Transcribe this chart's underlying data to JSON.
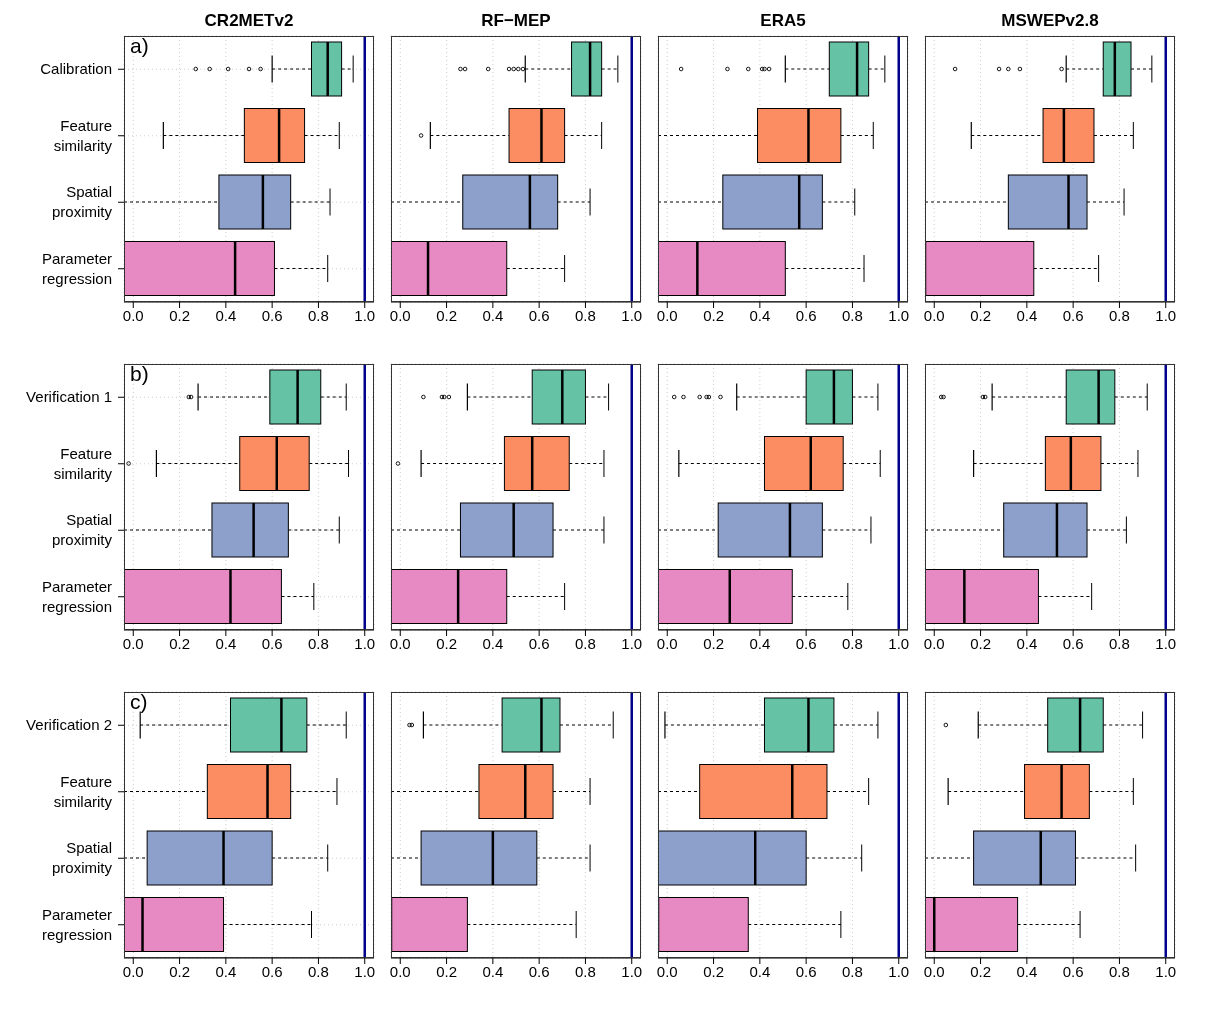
{
  "chart_data": [
    {
      "type": "box",
      "orientation": "horizontal",
      "title": "CR2METv2",
      "annotations": [
        "a)"
      ],
      "categories": [
        "Calibration",
        "Feature similarity",
        "Spatial proximity",
        "Parameter regression"
      ],
      "colors": [
        "#66c2a5",
        "#fc8d62",
        "#8da0cb",
        "#e78ac3"
      ],
      "boxes": [
        {
          "low": 0.6,
          "q1": 0.77,
          "median": 0.84,
          "q3": 0.9,
          "high": 0.95,
          "outliers": [
            0.27,
            0.33,
            0.41,
            0.5,
            0.55
          ]
        },
        {
          "low": 0.13,
          "q1": 0.48,
          "median": 0.63,
          "q3": 0.74,
          "high": 0.89
        },
        {
          "low": -0.04,
          "q1": 0.37,
          "median": 0.56,
          "q3": 0.68,
          "high": 0.85
        },
        {
          "low": -0.04,
          "q1": -0.04,
          "median": 0.44,
          "q3": 0.61,
          "high": 0.84
        }
      ],
      "xlim": [
        -0.04,
        1.04
      ],
      "xticks": [
        {
          "value": 0,
          "label": "0.0"
        },
        {
          "value": 0.2,
          "label": "0.2"
        },
        {
          "value": 0.4,
          "label": "0.4"
        },
        {
          "value": 0.6,
          "label": "0.6"
        },
        {
          "value": 0.8,
          "label": "0.8"
        },
        {
          "value": 1,
          "label": "1.0"
        }
      ],
      "ref_lines": [
        {
          "axis": "x",
          "value": 1,
          "color": "#00008b"
        }
      ],
      "grid": true
    },
    {
      "type": "box",
      "orientation": "horizontal",
      "title": "RF−MEP",
      "categories": [
        null,
        null,
        null,
        null
      ],
      "colors": [
        "#66c2a5",
        "#fc8d62",
        "#8da0cb",
        "#e78ac3"
      ],
      "tick_labels": "x",
      "boxes": [
        {
          "low": 0.54,
          "q1": 0.74,
          "median": 0.82,
          "q3": 0.87,
          "high": 0.94,
          "outliers": [
            0.26,
            0.28,
            0.38,
            0.47,
            0.49,
            0.51,
            0.53
          ]
        },
        {
          "low": 0.13,
          "q1": 0.47,
          "median": 0.61,
          "q3": 0.71,
          "high": 0.87,
          "outliers": [
            0.09
          ]
        },
        {
          "low": -0.04,
          "q1": 0.27,
          "median": 0.56,
          "q3": 0.68,
          "high": 0.82
        },
        {
          "low": -0.04,
          "q1": -0.04,
          "median": 0.12,
          "q3": 0.46,
          "high": 0.71
        }
      ],
      "xlim": [
        -0.04,
        1.04
      ],
      "xticks": [
        {
          "value": 0,
          "label": "0.0"
        },
        {
          "value": 0.2,
          "label": "0.2"
        },
        {
          "value": 0.4,
          "label": "0.4"
        },
        {
          "value": 0.6,
          "label": "0.6"
        },
        {
          "value": 0.8,
          "label": "0.8"
        },
        {
          "value": 1,
          "label": "1.0"
        }
      ],
      "ref_lines": [
        {
          "axis": "x",
          "value": 1,
          "color": "#00008b"
        }
      ],
      "grid": true
    },
    {
      "type": "box",
      "orientation": "horizontal",
      "title": "ERA5",
      "categories": [
        null,
        null,
        null,
        null
      ],
      "colors": [
        "#66c2a5",
        "#fc8d62",
        "#8da0cb",
        "#e78ac3"
      ],
      "tick_labels": "x",
      "boxes": [
        {
          "low": 0.51,
          "q1": 0.7,
          "median": 0.82,
          "q3": 0.87,
          "high": 0.94,
          "outliers": [
            0.06,
            0.26,
            0.35,
            0.41,
            0.42,
            0.44
          ]
        },
        {
          "low": -0.04,
          "q1": 0.39,
          "median": 0.61,
          "q3": 0.75,
          "high": 0.89
        },
        {
          "low": -0.04,
          "q1": 0.24,
          "median": 0.57,
          "q3": 0.67,
          "high": 0.81
        },
        {
          "low": -0.04,
          "q1": -0.04,
          "median": 0.13,
          "q3": 0.51,
          "high": 0.85
        }
      ],
      "xlim": [
        -0.04,
        1.04
      ],
      "xticks": [
        {
          "value": 0,
          "label": "0.0"
        },
        {
          "value": 0.2,
          "label": "0.2"
        },
        {
          "value": 0.4,
          "label": "0.4"
        },
        {
          "value": 0.6,
          "label": "0.6"
        },
        {
          "value": 0.8,
          "label": "0.8"
        },
        {
          "value": 1,
          "label": "1.0"
        }
      ],
      "ref_lines": [
        {
          "axis": "x",
          "value": 1,
          "color": "#00008b"
        }
      ],
      "grid": true
    },
    {
      "type": "box",
      "orientation": "horizontal",
      "title": "MSWEPv2.8",
      "categories": [
        null,
        null,
        null,
        null
      ],
      "colors": [
        "#66c2a5",
        "#fc8d62",
        "#8da0cb",
        "#e78ac3"
      ],
      "tick_labels": "x",
      "boxes": [
        {
          "low": 0.57,
          "q1": 0.73,
          "median": 0.78,
          "q3": 0.85,
          "high": 0.94,
          "outliers": [
            0.09,
            0.28,
            0.32,
            0.37,
            0.55
          ]
        },
        {
          "low": 0.16,
          "q1": 0.47,
          "median": 0.56,
          "q3": 0.69,
          "high": 0.86
        },
        {
          "low": -0.04,
          "q1": 0.32,
          "median": 0.58,
          "q3": 0.66,
          "high": 0.82
        },
        {
          "low": -0.04,
          "q1": -0.04,
          "median": -0.04,
          "q3": 0.43,
          "high": 0.71
        }
      ],
      "xlim": [
        -0.04,
        1.04
      ],
      "xticks": [
        {
          "value": 0,
          "label": "0.0"
        },
        {
          "value": 0.2,
          "label": "0.2"
        },
        {
          "value": 0.4,
          "label": "0.4"
        },
        {
          "value": 0.6,
          "label": "0.6"
        },
        {
          "value": 0.8,
          "label": "0.8"
        },
        {
          "value": 1,
          "label": "1.0"
        }
      ],
      "ref_lines": [
        {
          "axis": "x",
          "value": 1,
          "color": "#00008b"
        }
      ],
      "grid": true
    },
    {
      "type": "box",
      "orientation": "horizontal",
      "annotations": [
        "b)"
      ],
      "categories": [
        "Verification 1",
        "Feature similarity",
        "Spatial proximity",
        "Parameter regression"
      ],
      "colors": [
        "#66c2a5",
        "#fc8d62",
        "#8da0cb",
        "#e78ac3"
      ],
      "boxes": [
        {
          "low": 0.28,
          "q1": 0.59,
          "median": 0.71,
          "q3": 0.81,
          "high": 0.92,
          "outliers": [
            0.24,
            0.25
          ]
        },
        {
          "low": 0.1,
          "q1": 0.46,
          "median": 0.62,
          "q3": 0.76,
          "high": 0.93,
          "outliers": [
            -0.02
          ]
        },
        {
          "low": -0.04,
          "q1": 0.34,
          "median": 0.52,
          "q3": 0.67,
          "high": 0.89
        },
        {
          "low": -0.04,
          "q1": -0.04,
          "median": 0.42,
          "q3": 0.64,
          "high": 0.78
        }
      ],
      "xlim": [
        -0.04,
        1.04
      ],
      "xticks": [
        {
          "value": 0,
          "label": "0.0"
        },
        {
          "value": 0.2,
          "label": "0.2"
        },
        {
          "value": 0.4,
          "label": "0.4"
        },
        {
          "value": 0.6,
          "label": "0.6"
        },
        {
          "value": 0.8,
          "label": "0.8"
        },
        {
          "value": 1,
          "label": "1.0"
        }
      ],
      "ref_lines": [
        {
          "axis": "x",
          "value": 1,
          "color": "#00008b"
        }
      ],
      "grid": true
    },
    {
      "type": "box",
      "orientation": "horizontal",
      "categories": [
        null,
        null,
        null,
        null
      ],
      "colors": [
        "#66c2a5",
        "#fc8d62",
        "#8da0cb",
        "#e78ac3"
      ],
      "tick_labels": "x",
      "boxes": [
        {
          "low": 0.29,
          "q1": 0.57,
          "median": 0.7,
          "q3": 0.8,
          "high": 0.9,
          "outliers": [
            0.1,
            0.18,
            0.19,
            0.21
          ]
        },
        {
          "low": 0.09,
          "q1": 0.45,
          "median": 0.57,
          "q3": 0.73,
          "high": 0.88,
          "outliers": [
            -0.01
          ]
        },
        {
          "low": -0.04,
          "q1": 0.26,
          "median": 0.49,
          "q3": 0.66,
          "high": 0.88
        },
        {
          "low": -0.04,
          "q1": -0.04,
          "median": 0.25,
          "q3": 0.46,
          "high": 0.71
        }
      ],
      "xlim": [
        -0.04,
        1.04
      ],
      "xticks": [
        {
          "value": 0,
          "label": "0.0"
        },
        {
          "value": 0.2,
          "label": "0.2"
        },
        {
          "value": 0.4,
          "label": "0.4"
        },
        {
          "value": 0.6,
          "label": "0.6"
        },
        {
          "value": 0.8,
          "label": "0.8"
        },
        {
          "value": 1,
          "label": "1.0"
        }
      ],
      "ref_lines": [
        {
          "axis": "x",
          "value": 1,
          "color": "#00008b"
        }
      ],
      "grid": true
    },
    {
      "type": "box",
      "orientation": "horizontal",
      "categories": [
        null,
        null,
        null,
        null
      ],
      "colors": [
        "#66c2a5",
        "#fc8d62",
        "#8da0cb",
        "#e78ac3"
      ],
      "tick_labels": "x",
      "boxes": [
        {
          "low": 0.3,
          "q1": 0.6,
          "median": 0.72,
          "q3": 0.8,
          "high": 0.91,
          "outliers": [
            0.03,
            0.07,
            0.14,
            0.17,
            0.18,
            0.23
          ]
        },
        {
          "low": 0.05,
          "q1": 0.42,
          "median": 0.62,
          "q3": 0.76,
          "high": 0.92
        },
        {
          "low": -0.04,
          "q1": 0.22,
          "median": 0.53,
          "q3": 0.67,
          "high": 0.88
        },
        {
          "low": -0.04,
          "q1": -0.04,
          "median": 0.27,
          "q3": 0.54,
          "high": 0.78
        }
      ],
      "xlim": [
        -0.04,
        1.04
      ],
      "xticks": [
        {
          "value": 0,
          "label": "0.0"
        },
        {
          "value": 0.2,
          "label": "0.2"
        },
        {
          "value": 0.4,
          "label": "0.4"
        },
        {
          "value": 0.6,
          "label": "0.6"
        },
        {
          "value": 0.8,
          "label": "0.8"
        },
        {
          "value": 1,
          "label": "1.0"
        }
      ],
      "ref_lines": [
        {
          "axis": "x",
          "value": 1,
          "color": "#00008b"
        }
      ],
      "grid": true
    },
    {
      "type": "box",
      "orientation": "horizontal",
      "categories": [
        null,
        null,
        null,
        null
      ],
      "colors": [
        "#66c2a5",
        "#fc8d62",
        "#8da0cb",
        "#e78ac3"
      ],
      "tick_labels": "x",
      "boxes": [
        {
          "low": 0.25,
          "q1": 0.57,
          "median": 0.71,
          "q3": 0.78,
          "high": 0.92,
          "outliers": [
            0.03,
            0.04,
            0.21,
            0.22
          ]
        },
        {
          "low": 0.17,
          "q1": 0.48,
          "median": 0.59,
          "q3": 0.72,
          "high": 0.88
        },
        {
          "low": -0.04,
          "q1": 0.3,
          "median": 0.53,
          "q3": 0.66,
          "high": 0.83
        },
        {
          "low": -0.04,
          "q1": -0.04,
          "median": 0.13,
          "q3": 0.45,
          "high": 0.68
        }
      ],
      "xlim": [
        -0.04,
        1.04
      ],
      "xticks": [
        {
          "value": 0,
          "label": "0.0"
        },
        {
          "value": 0.2,
          "label": "0.2"
        },
        {
          "value": 0.4,
          "label": "0.4"
        },
        {
          "value": 0.6,
          "label": "0.6"
        },
        {
          "value": 0.8,
          "label": "0.8"
        },
        {
          "value": 1,
          "label": "1.0"
        }
      ],
      "ref_lines": [
        {
          "axis": "x",
          "value": 1,
          "color": "#00008b"
        }
      ],
      "grid": true
    },
    {
      "type": "box",
      "orientation": "horizontal",
      "annotations": [
        "c)"
      ],
      "categories": [
        "Verification 2",
        "Feature similarity",
        "Spatial proximity",
        "Parameter regression"
      ],
      "colors": [
        "#66c2a5",
        "#fc8d62",
        "#8da0cb",
        "#e78ac3"
      ],
      "boxes": [
        {
          "low": 0.03,
          "q1": 0.42,
          "median": 0.64,
          "q3": 0.75,
          "high": 0.92
        },
        {
          "low": -0.04,
          "q1": 0.32,
          "median": 0.58,
          "q3": 0.68,
          "high": 0.88
        },
        {
          "low": -0.04,
          "q1": 0.06,
          "median": 0.39,
          "q3": 0.6,
          "high": 0.84
        },
        {
          "low": -0.04,
          "q1": -0.04,
          "median": 0.04,
          "q3": 0.39,
          "high": 0.77
        }
      ],
      "xlim": [
        -0.04,
        1.04
      ],
      "xticks": [
        {
          "value": 0,
          "label": "0.0"
        },
        {
          "value": 0.2,
          "label": "0.2"
        },
        {
          "value": 0.4,
          "label": "0.4"
        },
        {
          "value": 0.6,
          "label": "0.6"
        },
        {
          "value": 0.8,
          "label": "0.8"
        },
        {
          "value": 1,
          "label": "1.0"
        }
      ],
      "ref_lines": [
        {
          "axis": "x",
          "value": 1,
          "color": "#00008b"
        }
      ],
      "grid": true
    },
    {
      "type": "box",
      "orientation": "horizontal",
      "categories": [
        null,
        null,
        null,
        null
      ],
      "colors": [
        "#66c2a5",
        "#fc8d62",
        "#8da0cb",
        "#e78ac3"
      ],
      "tick_labels": "x",
      "boxes": [
        {
          "low": 0.1,
          "q1": 0.44,
          "median": 0.61,
          "q3": 0.69,
          "high": 0.92,
          "outliers": [
            0.04,
            0.05
          ]
        },
        {
          "low": -0.04,
          "q1": 0.34,
          "median": 0.54,
          "q3": 0.66,
          "high": 0.82
        },
        {
          "low": -0.04,
          "q1": 0.09,
          "median": 0.4,
          "q3": 0.59,
          "high": 0.82
        },
        {
          "low": -0.04,
          "q1": -0.04,
          "median": -0.04,
          "q3": 0.29,
          "high": 0.76
        }
      ],
      "xlim": [
        -0.04,
        1.04
      ],
      "xticks": [
        {
          "value": 0,
          "label": "0.0"
        },
        {
          "value": 0.2,
          "label": "0.2"
        },
        {
          "value": 0.4,
          "label": "0.4"
        },
        {
          "value": 0.6,
          "label": "0.6"
        },
        {
          "value": 0.8,
          "label": "0.8"
        },
        {
          "value": 1,
          "label": "1.0"
        }
      ],
      "ref_lines": [
        {
          "axis": "x",
          "value": 1,
          "color": "#00008b"
        }
      ],
      "grid": true
    },
    {
      "type": "box",
      "orientation": "horizontal",
      "categories": [
        null,
        null,
        null,
        null
      ],
      "colors": [
        "#66c2a5",
        "#fc8d62",
        "#8da0cb",
        "#e78ac3"
      ],
      "tick_labels": "x",
      "boxes": [
        {
          "low": -0.01,
          "q1": 0.42,
          "median": 0.61,
          "q3": 0.72,
          "high": 0.91
        },
        {
          "low": -0.04,
          "q1": 0.14,
          "median": 0.54,
          "q3": 0.69,
          "high": 0.87
        },
        {
          "low": -0.04,
          "q1": -0.04,
          "median": 0.38,
          "q3": 0.6,
          "high": 0.84
        },
        {
          "low": -0.04,
          "q1": -0.04,
          "median": -0.04,
          "q3": 0.35,
          "high": 0.75
        }
      ],
      "xlim": [
        -0.04,
        1.04
      ],
      "xticks": [
        {
          "value": 0,
          "label": "0.0"
        },
        {
          "value": 0.2,
          "label": "0.2"
        },
        {
          "value": 0.4,
          "label": "0.4"
        },
        {
          "value": 0.6,
          "label": "0.6"
        },
        {
          "value": 0.8,
          "label": "0.8"
        },
        {
          "value": 1,
          "label": "1.0"
        }
      ],
      "ref_lines": [
        {
          "axis": "x",
          "value": 1,
          "color": "#00008b"
        }
      ],
      "grid": true
    },
    {
      "type": "box",
      "orientation": "horizontal",
      "categories": [
        null,
        null,
        null,
        null
      ],
      "colors": [
        "#66c2a5",
        "#fc8d62",
        "#8da0cb",
        "#e78ac3"
      ],
      "tick_labels": "x",
      "boxes": [
        {
          "low": 0.19,
          "q1": 0.49,
          "median": 0.63,
          "q3": 0.73,
          "high": 0.9,
          "outliers": [
            0.05
          ]
        },
        {
          "low": 0.06,
          "q1": 0.39,
          "median": 0.55,
          "q3": 0.67,
          "high": 0.86
        },
        {
          "low": -0.04,
          "q1": 0.17,
          "median": 0.46,
          "q3": 0.61,
          "high": 0.87
        },
        {
          "low": -0.04,
          "q1": -0.04,
          "median": 0.0,
          "q3": 0.36,
          "high": 0.63
        }
      ],
      "xlim": [
        -0.04,
        1.04
      ],
      "xticks": [
        {
          "value": 0,
          "label": "0.0"
        },
        {
          "value": 0.2,
          "label": "0.2"
        },
        {
          "value": 0.4,
          "label": "0.4"
        },
        {
          "value": 0.6,
          "label": "0.6"
        },
        {
          "value": 0.8,
          "label": "0.8"
        },
        {
          "value": 1,
          "label": "1.0"
        }
      ],
      "ref_lines": [
        {
          "axis": "x",
          "value": 1,
          "color": "#00008b"
        }
      ],
      "grid": true
    }
  ]
}
